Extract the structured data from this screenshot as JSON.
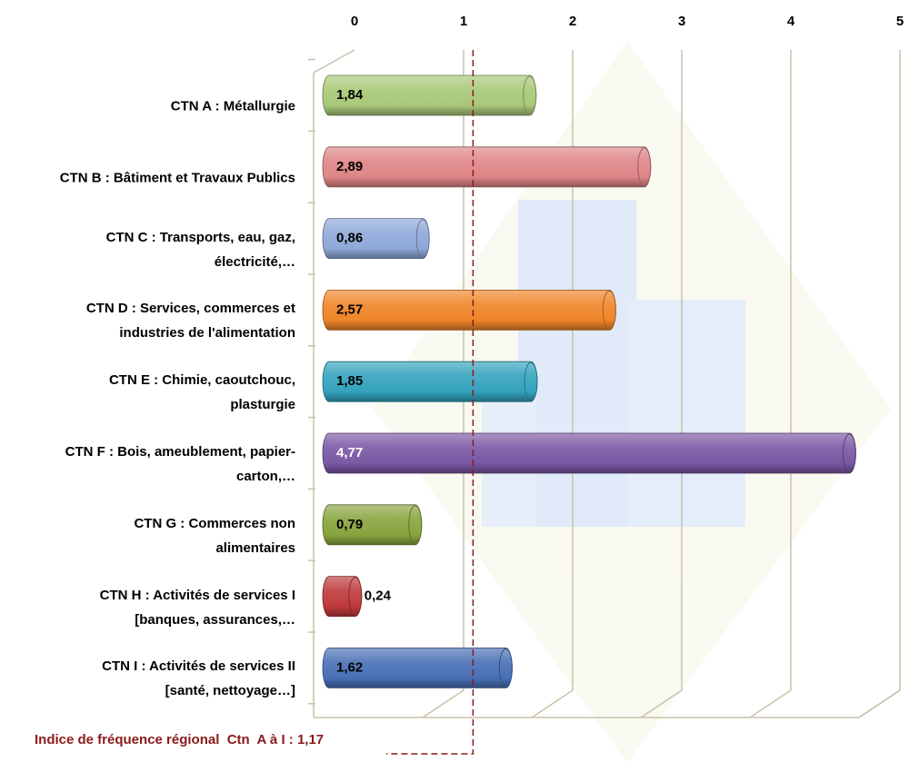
{
  "chart_data": {
    "type": "bar",
    "orientation": "horizontal",
    "categories": [
      "CTN A : Métallurgie",
      "CTN B : Bâtiment et Travaux Publics",
      "CTN C : Transports, eau, gaz,\nélectricité,…",
      "CTN D : Services, commerces et\nindustries de l'alimentation",
      "CTN E : Chimie, caoutchouc,\nplasturgie",
      "CTN F : Bois, ameublement, papier-\ncarton,…",
      "CTN G : Commerces non\nalimentaires",
      "CTN H : Activités de services I\n[banques, assurances,…",
      "CTN I : Activités de services II\n[santé, nettoyage…]"
    ],
    "values": [
      1.84,
      2.89,
      0.86,
      2.57,
      1.85,
      4.77,
      0.79,
      0.24,
      1.62
    ],
    "value_labels": [
      "1,84",
      "2,89",
      "0,86",
      "2,57",
      "1,85",
      "4,77",
      "0,79",
      "0,24",
      "1,62"
    ],
    "colors": [
      "#a8c878",
      "#df8587",
      "#8ea8d8",
      "#ef8528",
      "#34a3bd",
      "#7a58a4",
      "#88a43e",
      "#bf3a3c",
      "#4870b6"
    ],
    "xlim": [
      0,
      5
    ],
    "xticks": [
      0,
      1,
      2,
      3,
      4,
      5
    ],
    "grid": true,
    "reference_line": {
      "value": 1.17,
      "color": "#8b1a1a",
      "label": "Indice de fréquence régional  Ctn  A à I : 1,17"
    }
  }
}
